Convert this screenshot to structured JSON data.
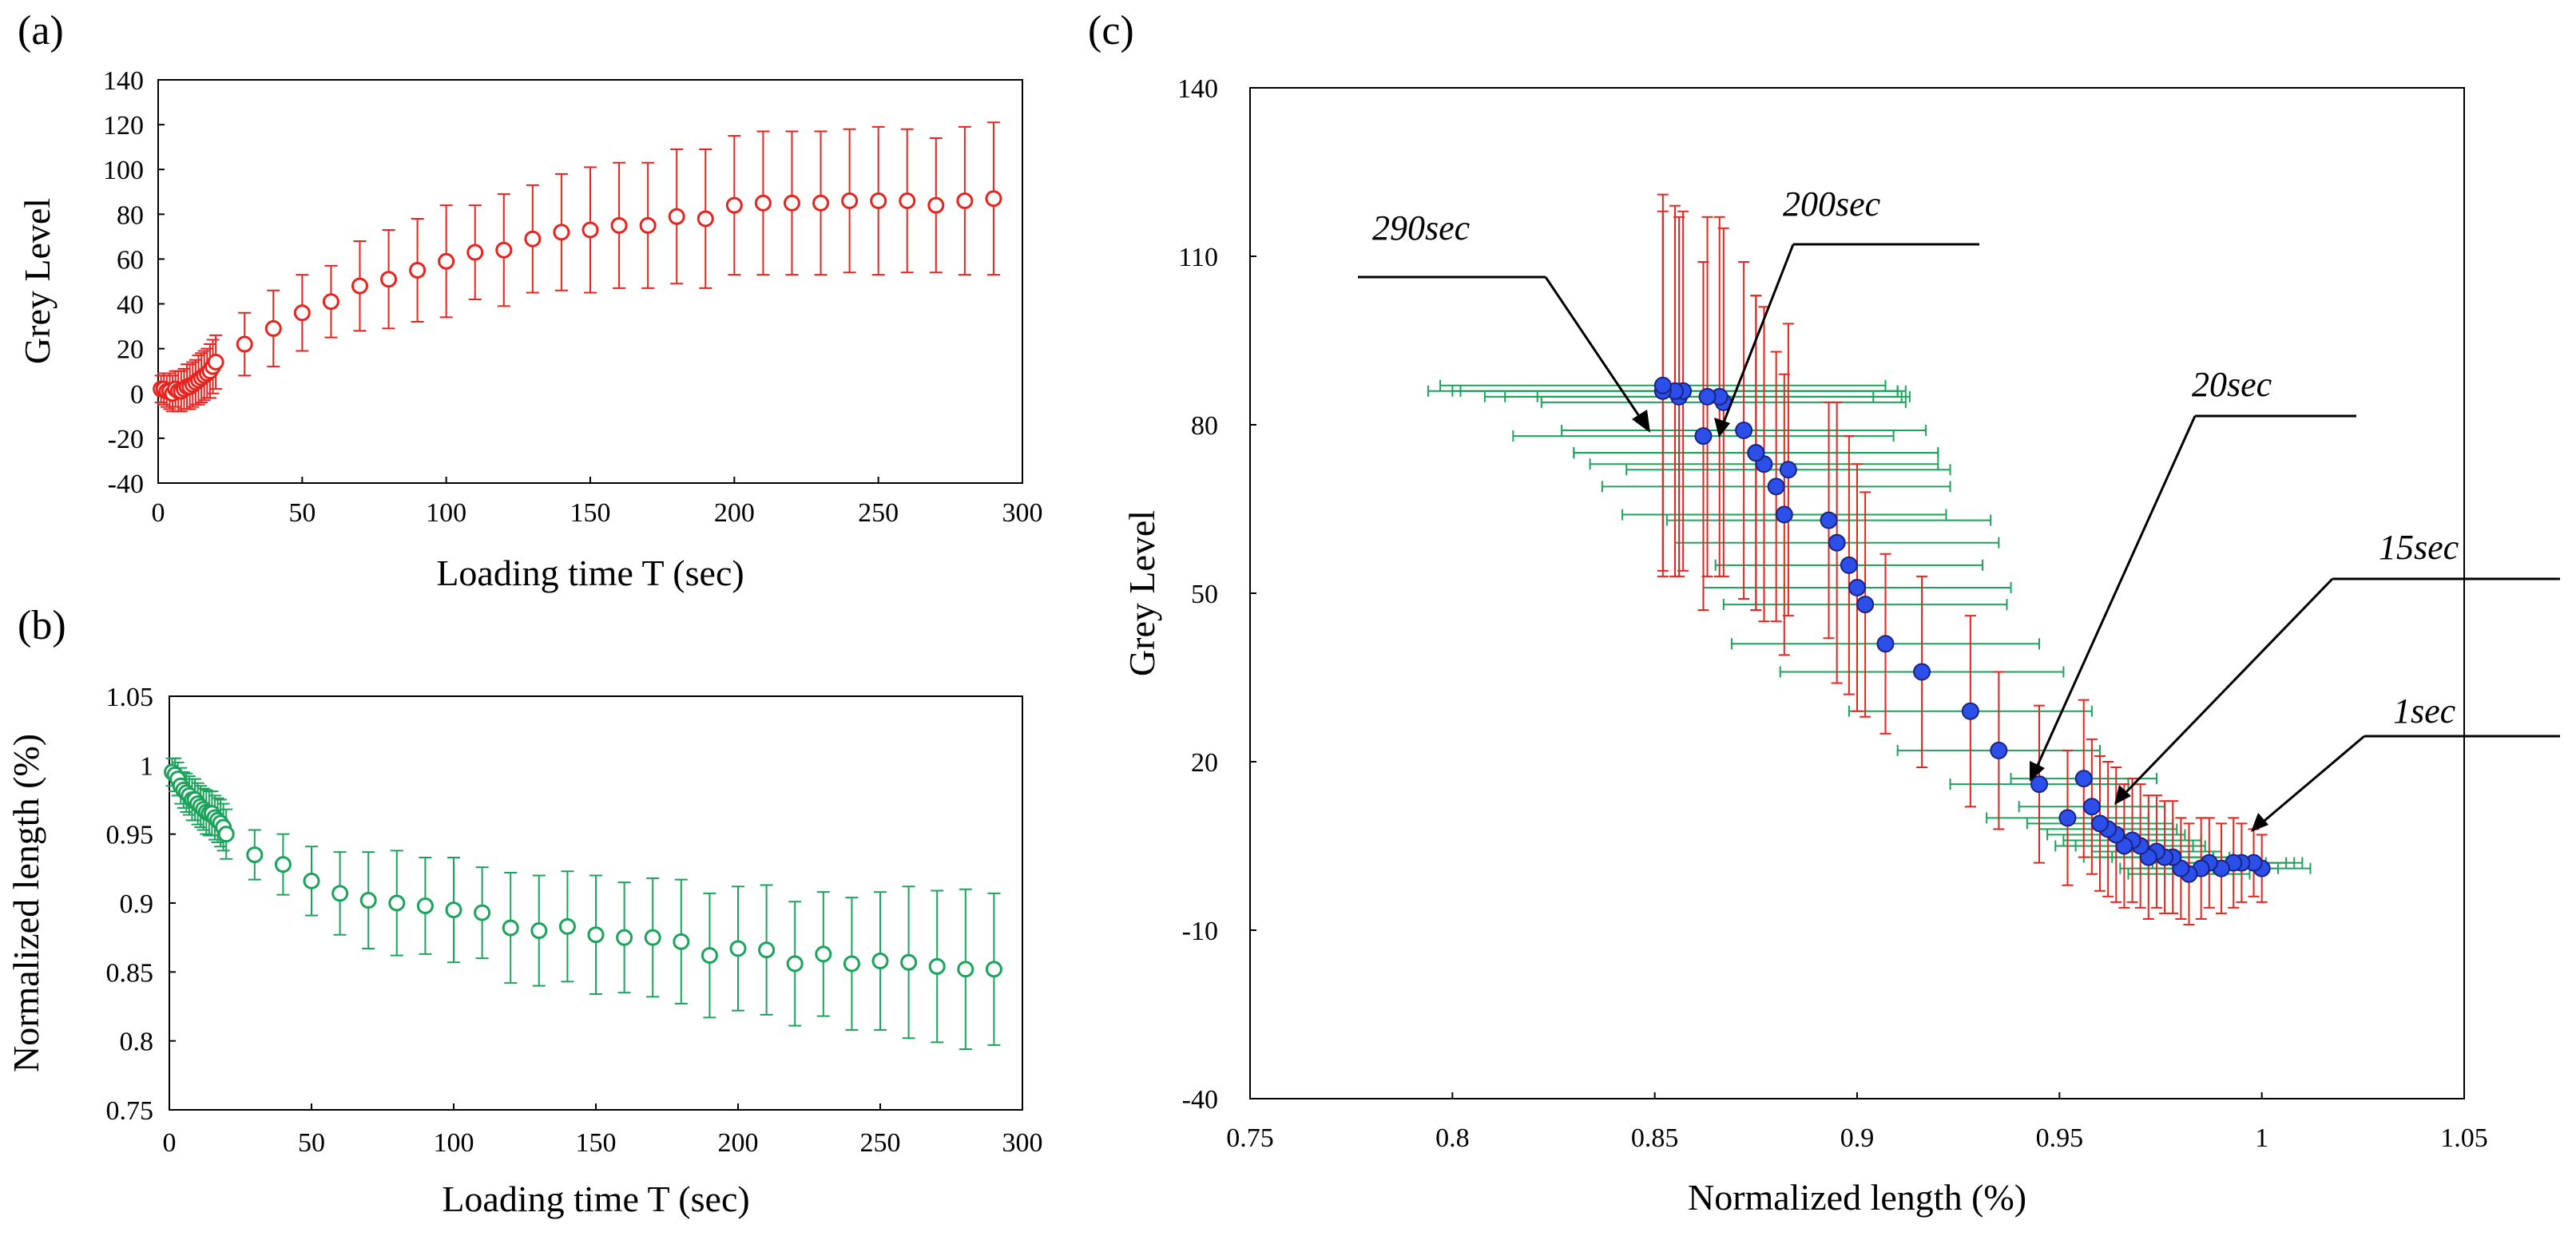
{
  "chart_data": [
    {
      "panel": "(a)",
      "type": "scatter",
      "xlabel": "Loading time T (sec)",
      "ylabel": "Grey Level",
      "xlim": [
        0,
        300
      ],
      "ylim": [
        -40,
        140
      ],
      "xticks": [
        0,
        50,
        100,
        150,
        200,
        250,
        300
      ],
      "yticks": [
        -40,
        -20,
        0,
        20,
        40,
        60,
        80,
        100,
        120,
        140
      ],
      "marker": "open-circle",
      "color": "#e8231e",
      "x": [
        1,
        2,
        3,
        4,
        5,
        6,
        7,
        8,
        9,
        10,
        11,
        12,
        13,
        14,
        15,
        16,
        17,
        18,
        19,
        20,
        30,
        40,
        50,
        60,
        70,
        80,
        90,
        100,
        110,
        120,
        130,
        140,
        150,
        160,
        170,
        180,
        190,
        200,
        210,
        220,
        230,
        240,
        250,
        260,
        270,
        280,
        290
      ],
      "y": [
        2,
        2,
        1,
        1,
        0,
        2,
        1,
        1,
        2,
        3,
        3,
        4,
        5,
        6,
        7,
        8,
        9,
        10,
        12,
        14,
        22,
        29,
        36,
        41,
        48,
        51,
        55,
        59,
        63,
        64,
        69,
        72,
        73,
        75,
        75,
        79,
        78,
        84,
        85,
        85,
        85,
        86,
        86,
        86,
        84,
        86,
        87
      ],
      "err": [
        6,
        7,
        7,
        8,
        8,
        8,
        9,
        9,
        9,
        10,
        10,
        10,
        10,
        11,
        11,
        11,
        11,
        12,
        12,
        12,
        14,
        17,
        17,
        16,
        20,
        22,
        23,
        25,
        21,
        25,
        24,
        26,
        28,
        28,
        28,
        30,
        31,
        31,
        32,
        32,
        32,
        32,
        33,
        32,
        30,
        33,
        34
      ]
    },
    {
      "panel": "(b)",
      "type": "scatter",
      "xlabel": "Loading time T (sec)",
      "ylabel": "Normalized length (%)",
      "xlim": [
        0,
        300
      ],
      "ylim": [
        0.75,
        1.05
      ],
      "xticks": [
        0,
        50,
        100,
        150,
        200,
        250,
        300
      ],
      "yticks": [
        "0.75",
        "0.8",
        "0.85",
        "0.9",
        "0.95",
        "1",
        "1.05"
      ],
      "marker": "open-circle",
      "color": "#1aa35a",
      "x": [
        1,
        2,
        3,
        4,
        5,
        6,
        7,
        8,
        9,
        10,
        11,
        12,
        13,
        14,
        15,
        16,
        17,
        18,
        19,
        20,
        30,
        40,
        50,
        60,
        70,
        80,
        90,
        100,
        110,
        120,
        130,
        140,
        150,
        160,
        170,
        180,
        190,
        200,
        210,
        220,
        230,
        240,
        250,
        260,
        270,
        280,
        290
      ],
      "y": [
        0.995,
        0.993,
        0.99,
        0.985,
        0.982,
        0.98,
        0.978,
        0.975,
        0.975,
        0.972,
        0.97,
        0.968,
        0.966,
        0.965,
        0.965,
        0.962,
        0.96,
        0.958,
        0.955,
        0.95,
        0.935,
        0.928,
        0.916,
        0.907,
        0.902,
        0.9,
        0.898,
        0.895,
        0.893,
        0.882,
        0.88,
        0.883,
        0.877,
        0.875,
        0.875,
        0.872,
        0.862,
        0.867,
        0.866,
        0.856,
        0.863,
        0.856,
        0.858,
        0.857,
        0.854,
        0.852,
        0.852
      ],
      "err": [
        0.01,
        0.012,
        0.012,
        0.013,
        0.013,
        0.014,
        0.014,
        0.015,
        0.015,
        0.015,
        0.015,
        0.015,
        0.016,
        0.016,
        0.016,
        0.016,
        0.016,
        0.017,
        0.017,
        0.018,
        0.018,
        0.022,
        0.025,
        0.03,
        0.035,
        0.038,
        0.035,
        0.038,
        0.033,
        0.04,
        0.04,
        0.04,
        0.043,
        0.04,
        0.043,
        0.045,
        0.045,
        0.045,
        0.047,
        0.045,
        0.045,
        0.048,
        0.05,
        0.055,
        0.055,
        0.058,
        0.055
      ]
    },
    {
      "panel": "(c)",
      "type": "scatter",
      "xlabel": "Normalized length (%)",
      "ylabel": "Grey Level",
      "xlim": [
        0.75,
        1.05
      ],
      "ylim": [
        -40,
        140
      ],
      "xticks": [
        "0.75",
        "0.8",
        "0.85",
        "0.9",
        "0.95",
        "1",
        "1.05"
      ],
      "yticks": [
        -40,
        -10,
        20,
        50,
        80,
        110,
        140
      ],
      "marker": "filled-circle",
      "color": "#2b4fe8",
      "xerr_color": "#1aa35a",
      "yerr_color": "#e8231e",
      "x": [
        1.0,
        0.998,
        0.995,
        0.993,
        0.99,
        0.987,
        0.985,
        0.982,
        0.98,
        0.978,
        0.976,
        0.974,
        0.972,
        0.97,
        0.968,
        0.966,
        0.964,
        0.962,
        0.96,
        0.958,
        0.956,
        0.952,
        0.945,
        0.935,
        0.928,
        0.916,
        0.907,
        0.902,
        0.9,
        0.898,
        0.895,
        0.893,
        0.882,
        0.88,
        0.883,
        0.877,
        0.875,
        0.875,
        0.872,
        0.862,
        0.867,
        0.866,
        0.856,
        0.863,
        0.857,
        0.855,
        0.852,
        0.852
      ],
      "y": [
        1,
        2,
        2,
        2,
        1,
        2,
        1,
        0,
        1,
        3,
        3,
        4,
        3,
        5,
        6,
        5,
        7,
        8,
        9,
        12,
        17,
        10,
        16,
        22,
        29,
        36,
        41,
        48,
        51,
        55,
        59,
        63,
        64,
        69,
        72,
        73,
        75,
        75,
        79,
        78,
        84,
        85,
        85,
        85,
        86,
        86,
        86,
        87
      ],
      "yerr": [
        6,
        6,
        7,
        8,
        8,
        8,
        9,
        9,
        9,
        10,
        10,
        10,
        11,
        11,
        11,
        11,
        12,
        12,
        12,
        12,
        14,
        12,
        14,
        14,
        17,
        17,
        16,
        20,
        22,
        23,
        25,
        21,
        25,
        24,
        26,
        28,
        28,
        28,
        30,
        31,
        31,
        32,
        32,
        32,
        32,
        33,
        32,
        34
      ],
      "xerr": [
        0.012,
        0.012,
        0.013,
        0.013,
        0.014,
        0.014,
        0.015,
        0.015,
        0.015,
        0.015,
        0.016,
        0.016,
        0.016,
        0.016,
        0.017,
        0.017,
        0.017,
        0.017,
        0.018,
        0.018,
        0.018,
        0.02,
        0.022,
        0.025,
        0.03,
        0.035,
        0.038,
        0.035,
        0.038,
        0.033,
        0.04,
        0.04,
        0.04,
        0.043,
        0.04,
        0.043,
        0.045,
        0.045,
        0.045,
        0.047,
        0.045,
        0.045,
        0.048,
        0.05,
        0.055,
        0.055,
        0.058,
        0.055
      ],
      "annotations": [
        "290sec",
        "200sec",
        "20sec",
        "15sec",
        "1sec"
      ]
    }
  ]
}
